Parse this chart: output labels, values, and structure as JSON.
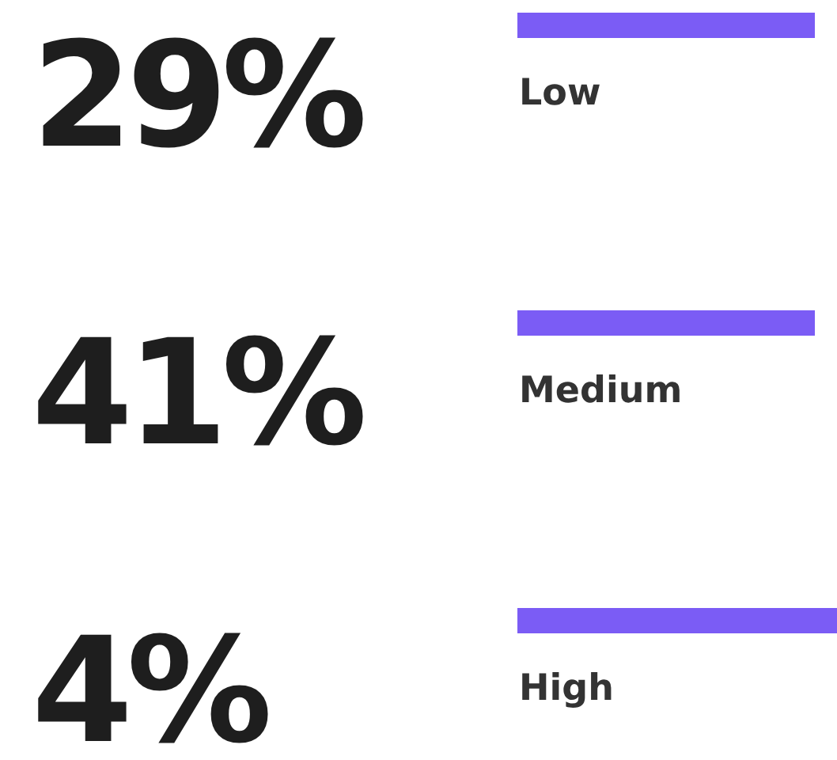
{
  "chart_data": {
    "type": "other",
    "categories": [
      "Low",
      "Medium",
      "High"
    ],
    "values": [
      29,
      41,
      4
    ],
    "value_labels": [
      "29%",
      "41%",
      "4%"
    ],
    "color": "#7b5cf5"
  }
}
